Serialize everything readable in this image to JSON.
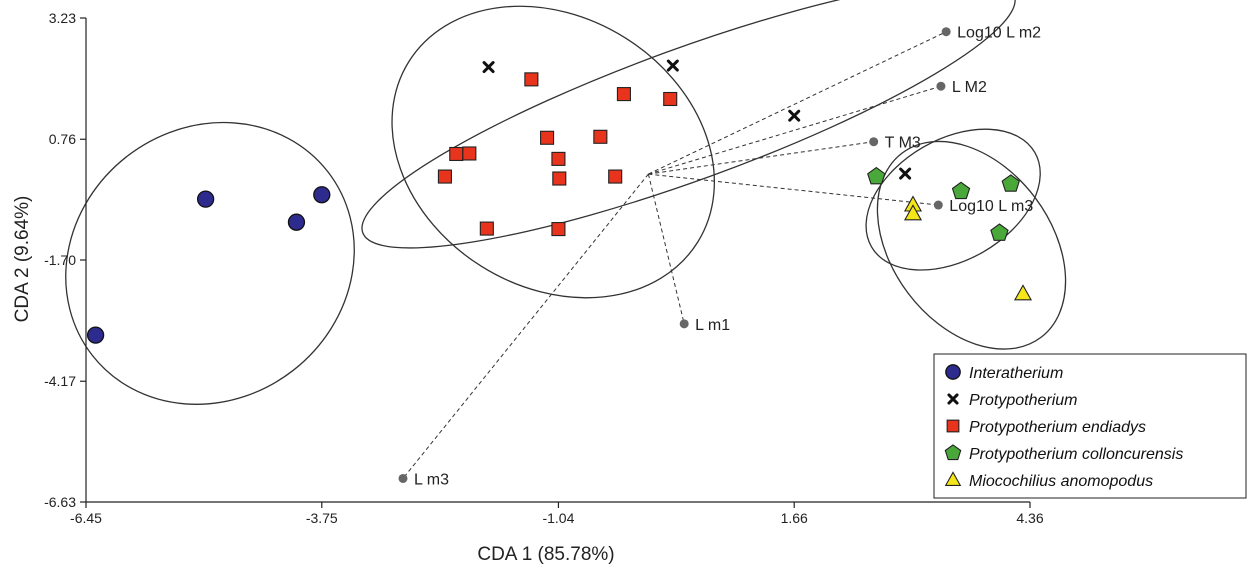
{
  "colors": {
    "interatherium": "#2e2b8f",
    "protypotherium": "#111111",
    "endiadys": "#e8341c",
    "colloncurensis": "#4aa83a",
    "miocochilius": "#f5e61a"
  },
  "chart_data": {
    "type": "scatter",
    "xlabel": "CDA 1 (85.78%)",
    "ylabel": "CDA 2 (9.64%)",
    "xlim": [
      -6.45,
      4.36
    ],
    "ylim": [
      -6.63,
      3.23
    ],
    "xticks": [
      -6.45,
      -3.75,
      -1.04,
      1.66,
      4.36
    ],
    "xtick_labels": [
      "-6.45",
      "-3.75",
      "-1.04",
      "1.66",
      "4.36"
    ],
    "yticks": [
      -6.63,
      -4.17,
      -1.7,
      0.76,
      3.23
    ],
    "ytick_labels": [
      "-6.63",
      "-4.17",
      "-1.70",
      "0.76",
      "3.23"
    ],
    "grid": false,
    "legend_position": "bottom-right",
    "series": [
      {
        "name": "Interatherium",
        "marker": "circle",
        "color": "#2e2b8f",
        "points": [
          [
            -6.34,
            -3.23
          ],
          [
            -5.08,
            -0.46
          ],
          [
            -4.04,
            -0.93
          ],
          [
            -3.75,
            -0.37
          ]
        ]
      },
      {
        "name": "Protypotherium",
        "marker": "x",
        "color": "#111111",
        "points": [
          [
            -1.84,
            2.23
          ],
          [
            0.27,
            2.26
          ],
          [
            1.66,
            1.24
          ],
          [
            2.93,
            0.06
          ]
        ]
      },
      {
        "name": "Protypotherium endiadys",
        "marker": "square",
        "color": "#e8341c",
        "points": [
          [
            -1.35,
            1.98
          ],
          [
            -0.29,
            1.68
          ],
          [
            0.24,
            1.58
          ],
          [
            -1.17,
            0.79
          ],
          [
            -0.56,
            0.81
          ],
          [
            -2.21,
            0.46
          ],
          [
            -2.06,
            0.47
          ],
          [
            -1.04,
            0.36
          ],
          [
            -1.03,
            -0.04
          ],
          [
            -0.39,
            0.0
          ],
          [
            -2.34,
            0.0
          ],
          [
            -1.86,
            -1.06
          ],
          [
            -1.04,
            -1.07
          ]
        ]
      },
      {
        "name": "Protypotherium colloncurensis",
        "marker": "pentagon",
        "color": "#4aa83a",
        "points": [
          [
            2.6,
            0.0
          ],
          [
            3.57,
            -0.3
          ],
          [
            4.14,
            -0.15
          ],
          [
            4.01,
            -1.15
          ]
        ]
      },
      {
        "name": "Miocochilius anomopodus",
        "marker": "triangle",
        "color": "#f5e61a",
        "points": [
          [
            3.02,
            -0.58
          ],
          [
            3.02,
            -0.76
          ],
          [
            4.28,
            -2.39
          ]
        ]
      }
    ],
    "ellipses": [
      {
        "cx": -5.03,
        "cy": -1.77,
        "rx": 1.71,
        "ry": 2.76,
        "angle": -38
      },
      {
        "cx": -1.1,
        "cy": 0.5,
        "rx": 1.95,
        "ry": 2.75,
        "angle": 32
      },
      {
        "cx": 0.45,
        "cy": 1.27,
        "rx": 3.97,
        "ry": 1.34,
        "angle": -20
      },
      {
        "cx": 3.48,
        "cy": -0.47,
        "rx": 1.08,
        "ry": 1.23,
        "angle": -30
      },
      {
        "cx": 3.69,
        "cy": -1.4,
        "rx": 0.91,
        "ry": 2.35,
        "angle": -37
      }
    ],
    "vector_origin": [
      -0.01,
      0.05
    ],
    "vectors": [
      {
        "label": "Log10 L m2",
        "x": 3.4,
        "y": 2.95
      },
      {
        "label": "L M2",
        "x": 3.34,
        "y": 1.84
      },
      {
        "label": "T M3",
        "x": 2.57,
        "y": 0.71
      },
      {
        "label": "Log10 L m3",
        "x": 3.31,
        "y": -0.58
      },
      {
        "label": "L m1",
        "x": 0.4,
        "y": -3.0
      },
      {
        "label": "L m3",
        "x": -2.82,
        "y": -6.15
      }
    ]
  }
}
